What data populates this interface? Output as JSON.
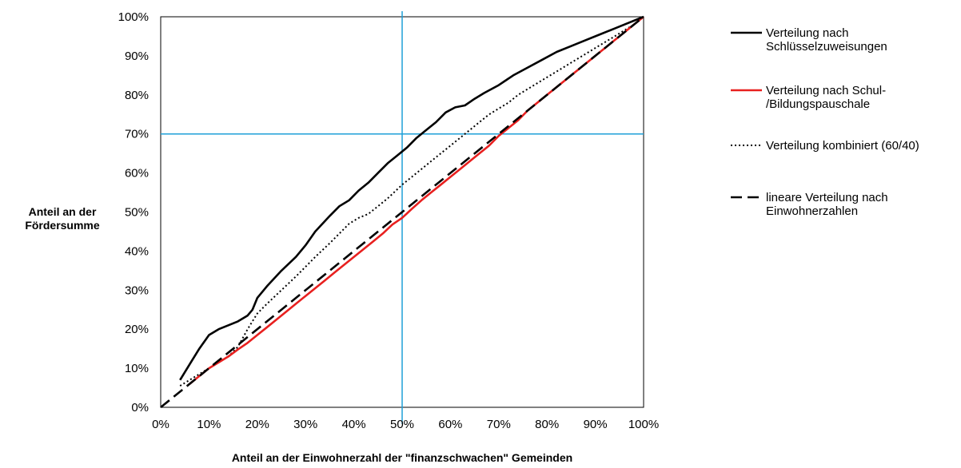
{
  "chart_data": {
    "type": "line",
    "xlabel": "Anteil an der Einwohnerzahl der \"finanzschwachen\" Gemeinden",
    "ylabel": [
      "Anteil an der",
      "Fördersumme"
    ],
    "xlim": [
      0,
      100
    ],
    "ylim": [
      0,
      100
    ],
    "x_ticks": [
      "0%",
      "10%",
      "20%",
      "30%",
      "40%",
      "50%",
      "60%",
      "70%",
      "80%",
      "90%",
      "100%"
    ],
    "y_ticks": [
      "0%",
      "10%",
      "20%",
      "30%",
      "40%",
      "50%",
      "60%",
      "70%",
      "80%",
      "90%",
      "100%"
    ],
    "grid": false,
    "legend_position": "right",
    "reference_lines": [
      {
        "orientation": "vertical",
        "value": 50,
        "color": "#1ea0d8"
      },
      {
        "orientation": "horizontal",
        "value": 70,
        "color": "#1ea0d8"
      }
    ],
    "series": [
      {
        "name": [
          "Verteilung nach",
          "Schlüsselzuweisungen"
        ],
        "color": "#000000",
        "style": "solid",
        "points": [
          [
            4,
            7
          ],
          [
            6,
            11
          ],
          [
            8,
            15
          ],
          [
            10,
            18.5
          ],
          [
            12,
            20
          ],
          [
            14,
            21
          ],
          [
            16,
            22
          ],
          [
            18,
            23.5
          ],
          [
            19,
            25
          ],
          [
            20,
            28
          ],
          [
            22,
            31
          ],
          [
            25,
            35
          ],
          [
            28,
            38.5
          ],
          [
            30,
            41.5
          ],
          [
            32,
            45
          ],
          [
            35,
            49
          ],
          [
            37,
            51.5
          ],
          [
            39,
            53
          ],
          [
            41,
            55.5
          ],
          [
            43,
            57.5
          ],
          [
            45,
            60
          ],
          [
            47,
            62.5
          ],
          [
            49,
            64.5
          ],
          [
            51,
            66.5
          ],
          [
            53,
            69
          ],
          [
            55,
            71
          ],
          [
            57,
            73
          ],
          [
            59,
            75.5
          ],
          [
            61,
            76.8
          ],
          [
            63,
            77.3
          ],
          [
            65,
            79
          ],
          [
            67,
            80.5
          ],
          [
            70,
            82.5
          ],
          [
            73,
            85
          ],
          [
            76,
            87
          ],
          [
            79,
            89
          ],
          [
            82,
            91
          ],
          [
            85,
            92.5
          ],
          [
            88,
            94
          ],
          [
            91,
            95.5
          ],
          [
            94,
            97
          ],
          [
            97,
            98.5
          ],
          [
            100,
            100
          ]
        ]
      },
      {
        "name": [
          "Verteilung nach Schul-",
          "/Bildungspauschale"
        ],
        "color": "#e8201f",
        "style": "solid",
        "points": [
          [
            6,
            6
          ],
          [
            8,
            8
          ],
          [
            10,
            10
          ],
          [
            12,
            11.5
          ],
          [
            14,
            13
          ],
          [
            16,
            14.8
          ],
          [
            18,
            16.5
          ],
          [
            20,
            18.5
          ],
          [
            22,
            20.5
          ],
          [
            24,
            22.5
          ],
          [
            26,
            24.5
          ],
          [
            28,
            26.5
          ],
          [
            30,
            28.5
          ],
          [
            32,
            30.5
          ],
          [
            34,
            32.5
          ],
          [
            36,
            34.5
          ],
          [
            38,
            36.5
          ],
          [
            40,
            38.5
          ],
          [
            42,
            40.5
          ],
          [
            44,
            42.5
          ],
          [
            46,
            44.5
          ],
          [
            48,
            46.8
          ],
          [
            50,
            48.5
          ],
          [
            52,
            50.8
          ],
          [
            54,
            53
          ],
          [
            56,
            55
          ],
          [
            58,
            57
          ],
          [
            60,
            59
          ],
          [
            62,
            61
          ],
          [
            64,
            63
          ],
          [
            66,
            65
          ],
          [
            68,
            67
          ],
          [
            70,
            69.5
          ],
          [
            72,
            71.5
          ],
          [
            74,
            73.5
          ],
          [
            76,
            76
          ],
          [
            78,
            78
          ],
          [
            80,
            80
          ],
          [
            82,
            82
          ],
          [
            84,
            84
          ],
          [
            86,
            86
          ],
          [
            88,
            88
          ],
          [
            90,
            90
          ],
          [
            92,
            92
          ],
          [
            94,
            94
          ],
          [
            96,
            96
          ],
          [
            98,
            98
          ],
          [
            100,
            100
          ]
        ]
      },
      {
        "name": "Verteilung kombiniert (60/40)",
        "color": "#000000",
        "style": "dotted",
        "points": [
          [
            4,
            5.5
          ],
          [
            6,
            7
          ],
          [
            8,
            8.5
          ],
          [
            10,
            10
          ],
          [
            12,
            11.5
          ],
          [
            14,
            13
          ],
          [
            16,
            15.5
          ],
          [
            18,
            20
          ],
          [
            20,
            24
          ],
          [
            22,
            26.5
          ],
          [
            25,
            30
          ],
          [
            28,
            33.5
          ],
          [
            30,
            36
          ],
          [
            32,
            38.5
          ],
          [
            35,
            42
          ],
          [
            37,
            44.5
          ],
          [
            39,
            47
          ],
          [
            41,
            48.5
          ],
          [
            43,
            49.5
          ],
          [
            45,
            51.5
          ],
          [
            47,
            53.5
          ],
          [
            50,
            57
          ],
          [
            52,
            59
          ],
          [
            54,
            61
          ],
          [
            56,
            63
          ],
          [
            58,
            65
          ],
          [
            60,
            67
          ],
          [
            62,
            69
          ],
          [
            64,
            71
          ],
          [
            66,
            73
          ],
          [
            68,
            75
          ],
          [
            70,
            76.5
          ],
          [
            72,
            78
          ],
          [
            74,
            80
          ],
          [
            76,
            81.5
          ],
          [
            78,
            83
          ],
          [
            80,
            84.5
          ],
          [
            82,
            86
          ],
          [
            84,
            87.5
          ],
          [
            86,
            89
          ],
          [
            88,
            90.5
          ],
          [
            90,
            92
          ],
          [
            92,
            93.5
          ],
          [
            94,
            95
          ],
          [
            96,
            96.5
          ],
          [
            98,
            98
          ],
          [
            100,
            100
          ]
        ]
      },
      {
        "name": [
          "lineare Verteilung nach",
          "Einwohnerzahlen"
        ],
        "color": "#000000",
        "style": "dashed",
        "points": [
          [
            0,
            0
          ],
          [
            100,
            100
          ]
        ]
      }
    ]
  }
}
